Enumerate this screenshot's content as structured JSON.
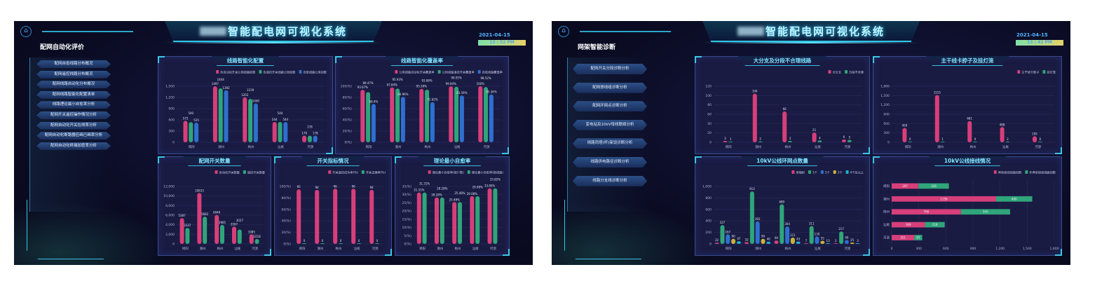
{
  "app_title": "智能配电网可视化系统",
  "colors": {
    "pink": "#d63f7a",
    "green": "#2fa57a",
    "blue": "#2f6fcf",
    "yellow": "#c9b23c",
    "cyan": "#1fb0d0",
    "accent": "#37d2ff"
  },
  "screens": [
    {
      "section_title": "配网自动化评价",
      "date": "2021-04-15",
      "time": "13 : 52 PM",
      "menu": [
        "配网自愈线路分布概况",
        "配网遥控线路分布概况",
        "配网线路自动化分布概况",
        "配网线路智能化配置清单",
        "线路理论最小自愈率分析",
        "配网开关遥控操作情况分析",
        "配网自动化开关在线率分析",
        "配网自动化断路器应画已画率分析",
        "配网自动化终端加密率分析"
      ]
    },
    {
      "section_title": "网架智能诊断",
      "date": "2021-04-15",
      "time": "13 : 42 PM",
      "menu": [
        "配网开关分段诊断分析",
        "配网馈线组诊断分析",
        "配网环网点诊断分析",
        "变电站及10kV母线联络分析",
        "线路同塔(杆)架设诊断分析",
        "线路供电路径诊断分析",
        "线路分支线诊断分析"
      ]
    }
  ],
  "chart_data": [
    {
      "title": "线路智能化配置",
      "type": "bar",
      "categories": [
        "揭阳",
        "潮州",
        "梅州",
        "汕尾",
        "河源"
      ],
      "ylim": [
        0,
        1500
      ],
      "ytick_step": 300,
      "series": [
        {
          "name": "含自动化开关公用线路回数",
          "color": "#d63f7a",
          "values": [
            575,
            1497,
            1202,
            544,
            178
          ]
        },
        {
          "name": "含遥控开关线路公用回数",
          "color": "#2fa57a",
          "values": [
            540,
            1444,
            1159,
            544,
            178
          ]
        },
        {
          "name": "自愈线路公用回数",
          "color": "#2f6fcf",
          "values": [
            525,
            1392,
            1040,
            544,
            178
          ]
        }
      ]
    },
    {
      "title": "线路智能化覆盖率",
      "type": "bar",
      "categories": [
        "揭阳",
        "潮州",
        "梅州",
        "汕尾",
        "河源"
      ],
      "ylim": [
        0,
        100
      ],
      "ytick_step": 20,
      "tick_suffix": "(%)",
      "label_suffix": "%",
      "series": [
        {
          "name": "公用线路自动化开关覆盖率",
          "color": "#d63f7a",
          "values": [
            93.67,
            97.84,
            95.39,
            99.84,
            100
          ]
        },
        {
          "name": "公用线路遥控开关覆盖率",
          "color": "#2fa57a",
          "values": [
            89.47,
            95.93,
            93.86,
            99.05,
            98.52
          ]
        },
        {
          "name": "自愈线路覆盖率",
          "color": "#2f6fcf",
          "values": [
            68.4,
            80.96,
            71.62,
            83.59,
            85.34
          ]
        }
      ]
    },
    {
      "title": "配网开关数量",
      "type": "bar",
      "categories": [
        "揭阳",
        "潮州",
        "梅州",
        "汕尾",
        "河源"
      ],
      "ylim": [
        0,
        12000
      ],
      "ytick_step": 2000,
      "series": [
        {
          "name": "自动化开关数量",
          "color": "#d63f7a",
          "values": [
            5387,
            10633,
            6046,
            3597,
            1985
          ]
        },
        {
          "name": "遥控开关数量",
          "color": "#2fa57a",
          "values": [
            3337,
            5682,
            3965,
            3027,
            1018
          ]
        }
      ]
    },
    {
      "title": "开关指标情况",
      "type": "bar",
      "categories": [
        "揭阳",
        "潮州",
        "梅州",
        "汕尾",
        "河源"
      ],
      "ylim": [
        0,
        100
      ],
      "ytick_step": 20,
      "tick_suffix": "(%)",
      "series": [
        {
          "name": "开关遥控成功率(%)",
          "color": "#d63f7a",
          "values": [
            95,
            94,
            96,
            96,
            94
          ]
        },
        {
          "name": "开关正确率(%)",
          "color": "#2fa57a",
          "values": [
            0,
            0,
            0,
            0,
            0
          ]
        }
      ]
    },
    {
      "title": "理论最小自愈率",
      "type": "bar",
      "categories": [
        "揭阳",
        "潮州",
        "梅州",
        "汕尾",
        "河源"
      ],
      "ylim": [
        0,
        35
      ],
      "ytick_step": 5,
      "tick_suffix": "(%)",
      "label_suffix": "%",
      "series": [
        {
          "name": "理论最小自愈率(按户数)",
          "color": "#d63f7a",
          "values": [
            31.31,
            28.28,
            25.48,
            29.08,
            33.85
          ]
        },
        {
          "name": "理论最小自愈率(按线路)",
          "color": "#2fa57a",
          "values": [
            31.31,
            28.28,
            25.48,
            29.08,
            33.85
          ]
        }
      ]
    },
    {
      "title": "大分支及分段不合理线路",
      "type": "bar",
      "categories": [
        "揭阳",
        "潮州",
        "梅州",
        "汕尾",
        "河源"
      ],
      "ylim": [
        0,
        120
      ],
      "ytick_step": 20,
      "series": [
        {
          "name": "大分支",
          "color": "#d63f7a",
          "values": [
            3,
            104,
            66,
            21,
            6
          ]
        },
        {
          "name": "分段不合理",
          "color": "#2fa57a",
          "values": [
            1,
            2,
            3,
            4,
            5
          ]
        }
      ]
    },
    {
      "title": "主干线卡脖子及挂灯笼",
      "type": "bar",
      "categories": [
        "揭阳",
        "潮州",
        "梅州",
        "汕尾",
        "河源"
      ],
      "ylim": [
        0,
        1800
      ],
      "ytick_step": 300,
      "series": [
        {
          "name": "主干线卡脖子",
          "color": "#d63f7a",
          "values": [
            459,
            1515,
            681,
            488,
            195
          ]
        },
        {
          "name": "挂灯笼",
          "color": "#2fa57a",
          "values": [
            0,
            1,
            0,
            2,
            0
          ]
        }
      ]
    },
    {
      "title": "10kV公线环网点数量",
      "type": "bar",
      "categories": [
        "揭阳",
        "潮州",
        "梅州",
        "汕尾",
        "河源"
      ],
      "ylim": [
        0,
        1000
      ],
      "ytick_step": 200,
      "series": [
        {
          "name": "单辐射",
          "color": "#d63f7a",
          "values": [
            22,
            32,
            60,
            7,
            2
          ]
        },
        {
          "name": "1个",
          "color": "#2fa57a",
          "values": [
            327,
            913,
            689,
            311,
            217
          ]
        },
        {
          "name": "2个",
          "color": "#2f6fcf",
          "values": [
            167,
            392,
            304,
            130,
            69
          ]
        },
        {
          "name": "3个",
          "color": "#c9b23c",
          "values": [
            90,
            90,
            111,
            55,
            25
          ]
        },
        {
          "name": "4个及以上",
          "color": "#1fb0d0",
          "values": [
            47,
            40,
            43,
            13,
            3
          ]
        }
      ]
    },
    {
      "title": "10kV公线接线情况",
      "type": "hbar-stacked",
      "categories": [
        "揭阳",
        "潮州",
        "梅州",
        "汕尾",
        "河源"
      ],
      "xlim": [
        0,
        1800
      ],
      "xtick_step": 300,
      "series": [
        {
          "name": "典型接线线路回数",
          "color": "#d63f7a",
          "values": [
            297,
            1156,
            766,
            369,
            251
          ]
        },
        {
          "name": "非典型接线线路回数",
          "color": "#2fa57a",
          "values": [
            336,
            400,
            545,
            218,
            87
          ]
        }
      ]
    }
  ]
}
